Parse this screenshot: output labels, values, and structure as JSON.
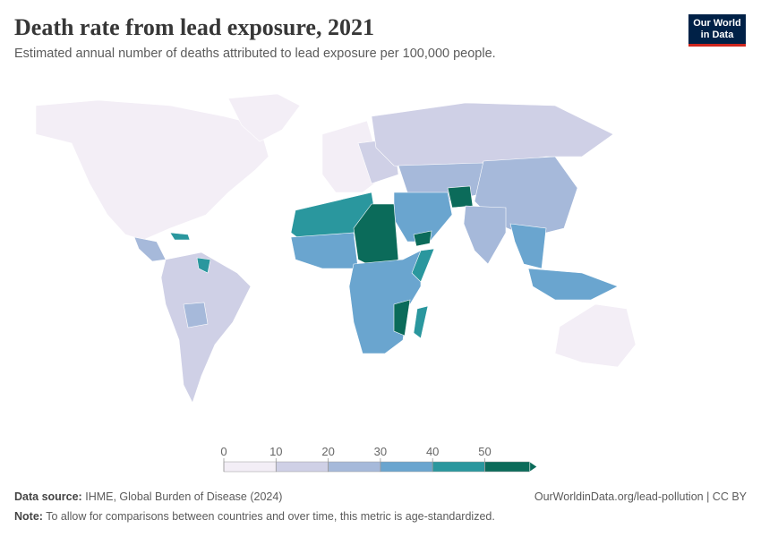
{
  "header": {
    "title": "Death rate from lead exposure, 2021",
    "subtitle": "Estimated annual number of deaths attributed to lead exposure per 100,000 people.",
    "logo": [
      "Our World",
      "in Data"
    ]
  },
  "legend": {
    "ticks": [
      0,
      10,
      20,
      30,
      40,
      50
    ],
    "colors": [
      "#f3eef6",
      "#cfd0e6",
      "#a6b9da",
      "#6aa5cf",
      "#2a979e",
      "#0b6b5a"
    ]
  },
  "footer": {
    "source_label": "Data source:",
    "source": "IHME, Global Burden of Disease (2024)",
    "url": "OurWorldinData.org/lead-pollution | CC BY",
    "note_label": "Note:",
    "note": "To allow for comparisons between countries and over time, this metric is age-standardized."
  }
}
